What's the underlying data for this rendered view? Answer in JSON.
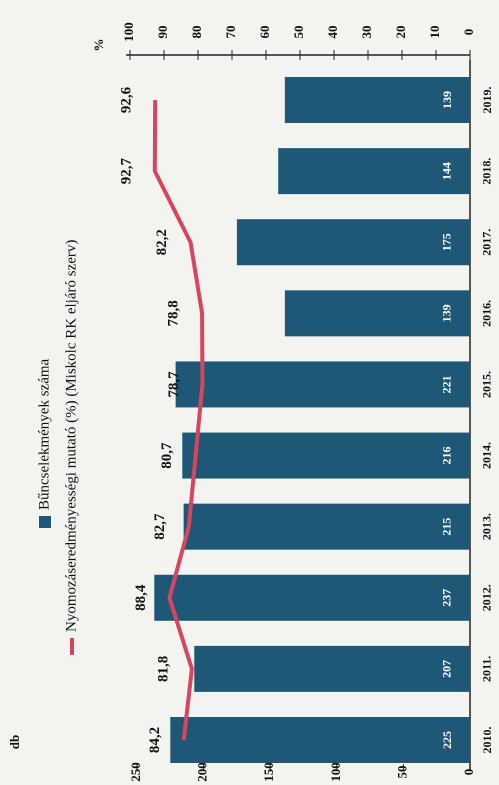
{
  "chart_data": {
    "type": "bar_line",
    "categories": [
      "2010.",
      "2011.",
      "2012.",
      "2013.",
      "2014.",
      "2015.",
      "2016.",
      "2017.",
      "2018.",
      "2019."
    ],
    "series": [
      {
        "name": "Bűncselekmények száma",
        "color": "#1f5877",
        "values": [
          225,
          207,
          237,
          215,
          216,
          221,
          139,
          175,
          144,
          139
        ]
      },
      {
        "name": "Nyomozáseredményességi mutató (%) (Miskolc RK eljáró szerv)",
        "color": "#d8455c",
        "axis": "y2",
        "values": [
          84.2,
          81.8,
          88.4,
          82.7,
          80.7,
          78.7,
          78.8,
          82.2,
          92.7,
          92.6
        ],
        "value_labels": [
          "84,2",
          "81,8",
          "88,4",
          "82,7",
          "80,7",
          "78,7",
          "78,8",
          "82,2",
          "92,7",
          "92,6"
        ]
      }
    ],
    "ylabel": "db",
    "ylim": [
      0,
      250
    ],
    "yticks": [
      0,
      50,
      100,
      150,
      200,
      250
    ],
    "y2label": "%",
    "y2lim": [
      0,
      100
    ],
    "y2ticks": [
      0,
      10,
      20,
      30,
      40,
      50,
      60,
      70,
      80,
      90,
      100
    ]
  }
}
